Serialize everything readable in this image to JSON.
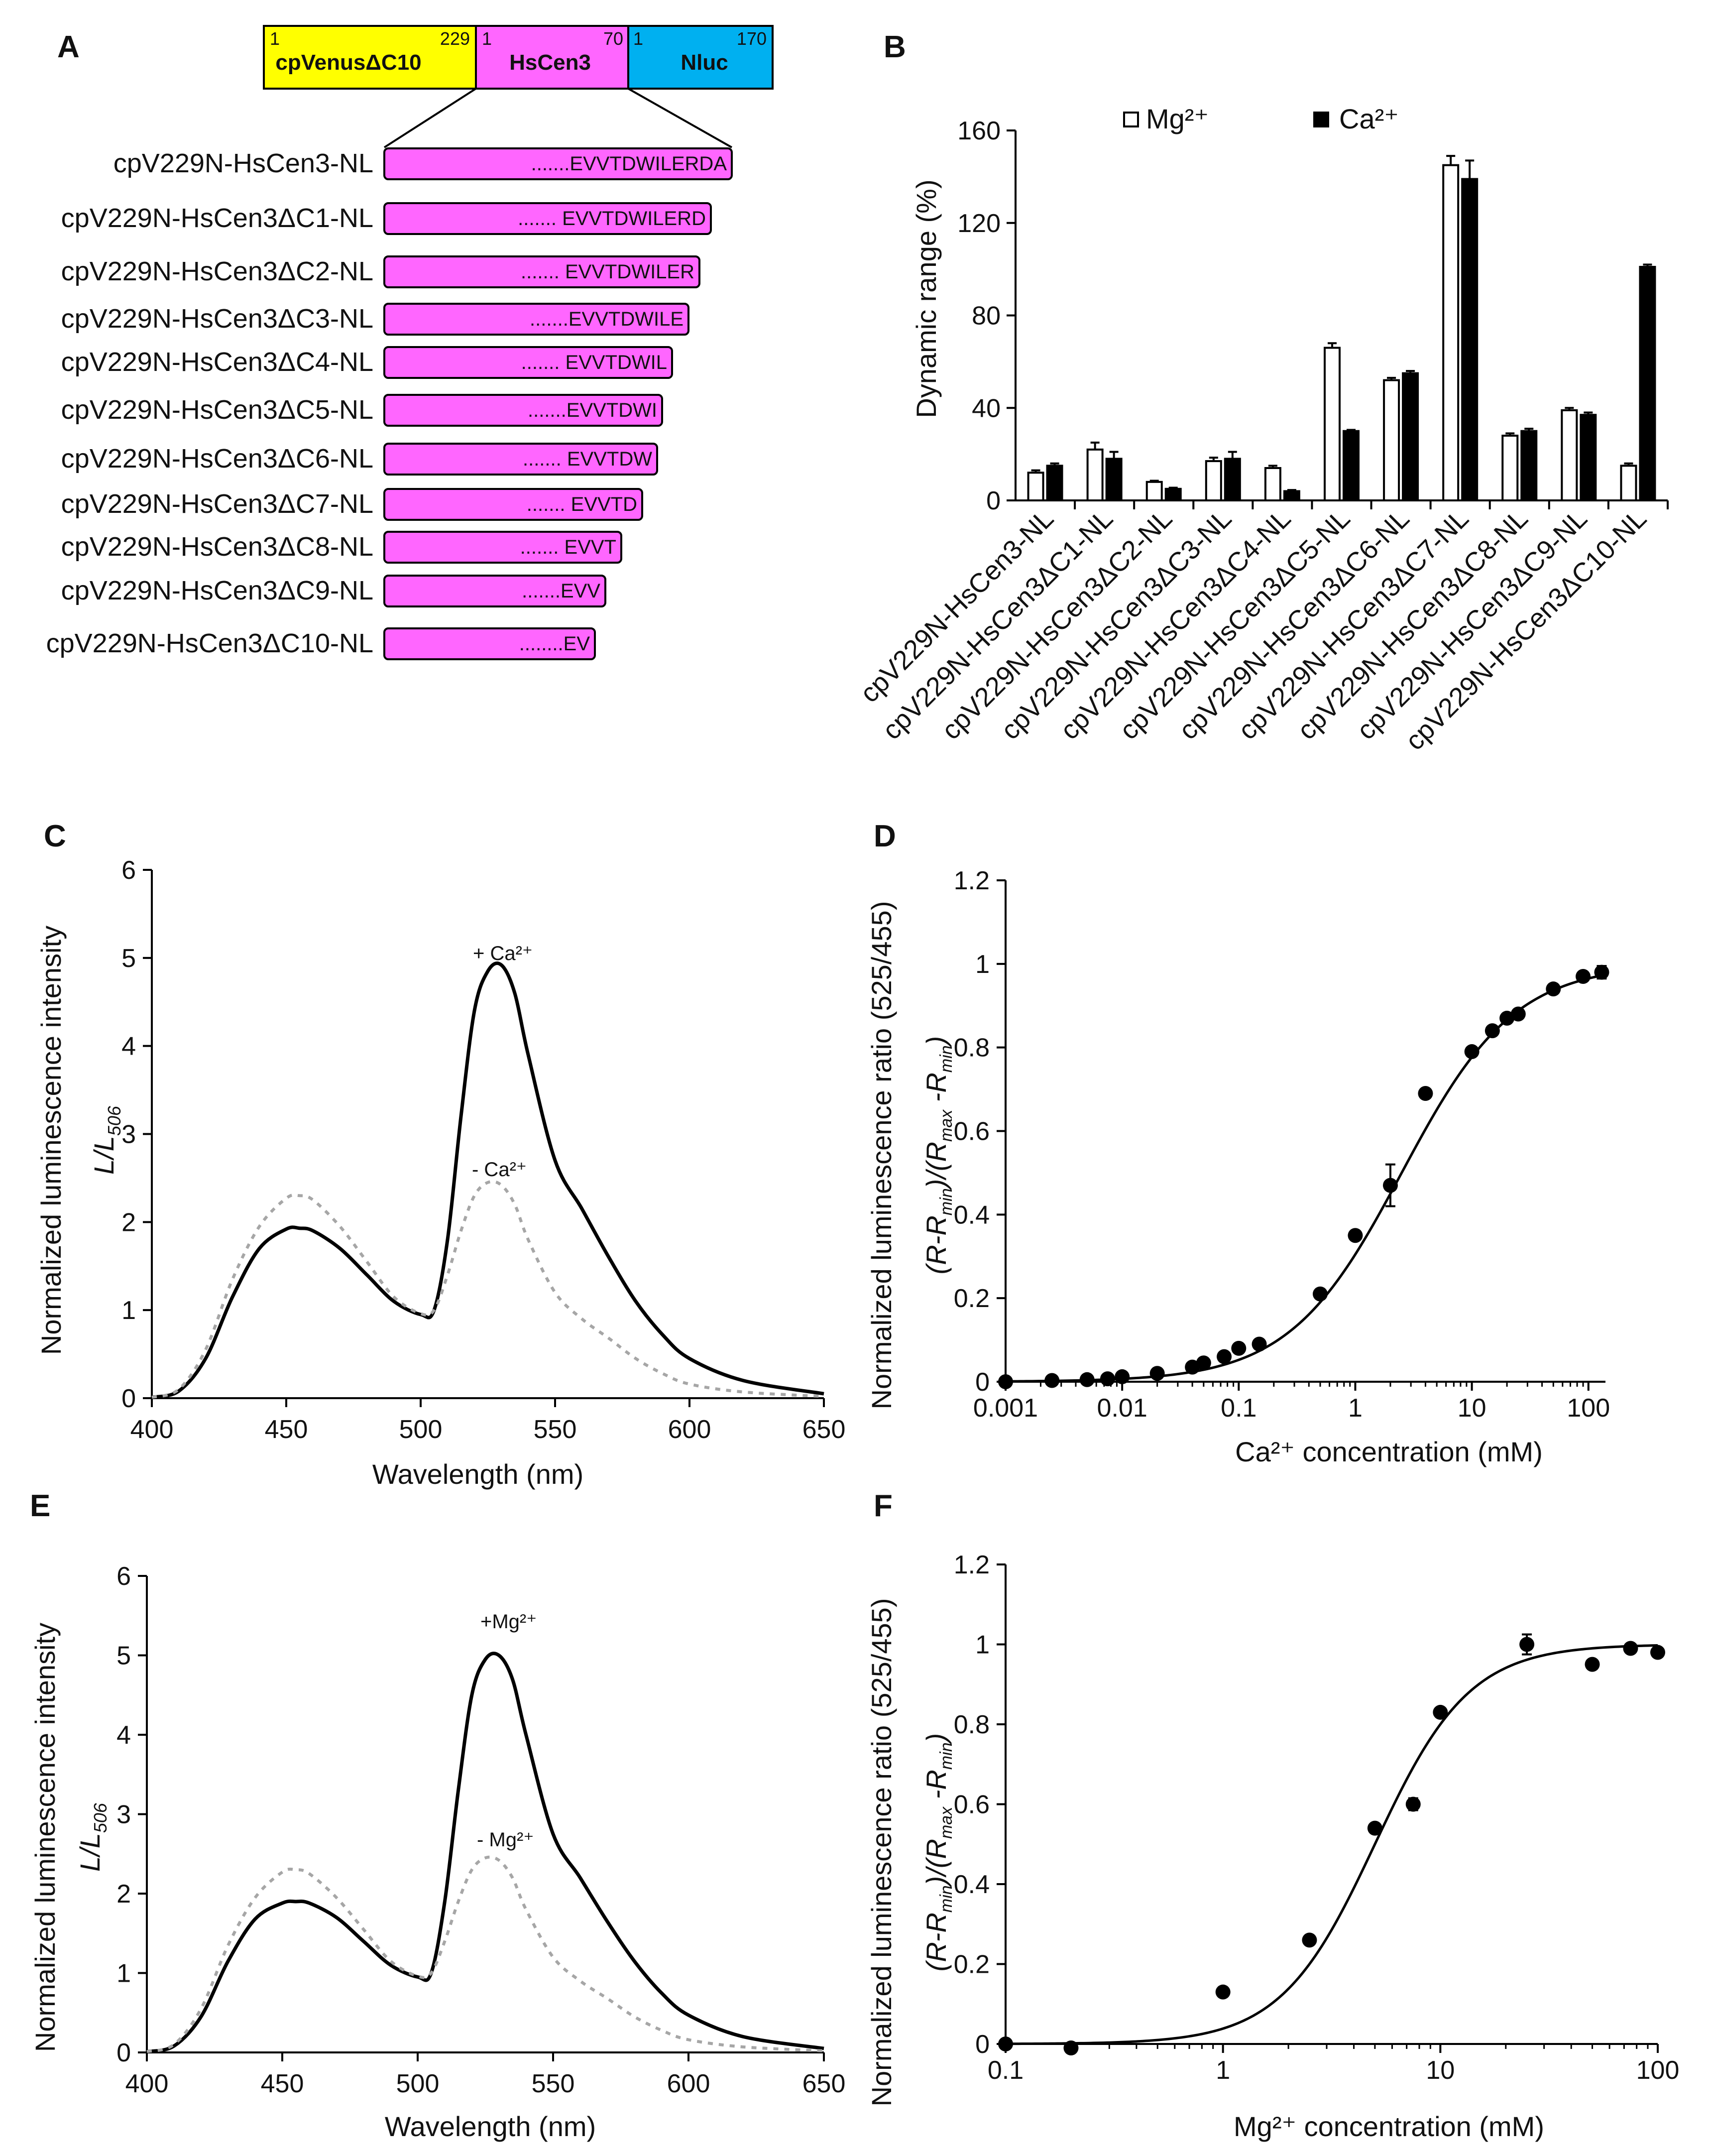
{
  "colors": {
    "yellow": "#ffff00",
    "magenta": "#ff66ff",
    "cyan": "#00b0f0",
    "black": "#000000",
    "gray": "#a6a6a6"
  },
  "panelA": {
    "label": "A",
    "domains": [
      {
        "name": "cpVenusΔC10",
        "start": "1",
        "end": "229"
      },
      {
        "name": "HsCen3",
        "start": "1",
        "end": "70"
      },
      {
        "name": "Nluc",
        "start": "1",
        "end": "170"
      }
    ],
    "constructs": [
      {
        "name": "cpV229N-HsCen3-NL",
        "seq": ".......EVVTDWILERDA"
      },
      {
        "name": "cpV229N-HsCen3ΔC1-NL",
        "seq": "....... EVVTDWILERD"
      },
      {
        "name": "cpV229N-HsCen3ΔC2-NL",
        "seq": "....... EVVTDWILER"
      },
      {
        "name": "cpV229N-HsCen3ΔC3-NL",
        "seq": ".......EVVTDWILE"
      },
      {
        "name": "cpV229N-HsCen3ΔC4-NL",
        "seq": "....... EVVTDWIL"
      },
      {
        "name": "cpV229N-HsCen3ΔC5-NL",
        "seq": ".......EVVTDWI"
      },
      {
        "name": "cpV229N-HsCen3ΔC6-NL",
        "seq": "....... EVVTDW"
      },
      {
        "name": "cpV229N-HsCen3ΔC7-NL",
        "seq": "....... EVVTD"
      },
      {
        "name": "cpV229N-HsCen3ΔC8-NL",
        "seq": "....... EVVT"
      },
      {
        "name": "cpV229N-HsCen3ΔC9-NL",
        "seq": ".......EVV"
      },
      {
        "name": "cpV229N-HsCen3ΔC10-NL",
        "seq": "........EV"
      }
    ]
  },
  "chart_data": [
    {
      "panel": "B",
      "type": "bar",
      "ylabel": "Dynamic range (%)",
      "ylim": [
        0,
        160
      ],
      "yticks": [
        "0",
        "40",
        "80",
        "120",
        "160"
      ],
      "legend": [
        "Mg²⁺",
        "Ca²⁺"
      ],
      "legend_position": "top",
      "categories": [
        "cpV229N-HsCen3-NL",
        "cpV229N-HsCen3ΔC1-NL",
        "cpV229N-HsCen3ΔC2-NL",
        "cpV229N-HsCen3ΔC3-NL",
        "cpV229N-HsCen3ΔC4-NL",
        "cpV229N-HsCen3ΔC5-NL",
        "cpV229N-HsCen3ΔC6-NL",
        "cpV229N-HsCen3ΔC7-NL",
        "cpV229N-HsCen3ΔC8-NL",
        "cpV229N-HsCen3ΔC9-NL",
        "cpV229N-HsCen3ΔC10-NL"
      ],
      "series": [
        {
          "name": "Mg²⁺",
          "values": [
            12,
            22,
            8,
            17,
            14,
            66,
            52,
            145,
            28,
            39,
            15
          ],
          "errors": [
            1,
            3,
            0.5,
            1.5,
            1,
            2,
            1,
            4,
            1,
            1,
            1
          ]
        },
        {
          "name": "Ca²⁺",
          "values": [
            15,
            18,
            5,
            18,
            4,
            30,
            55,
            139,
            30,
            37,
            101
          ],
          "errors": [
            1,
            3,
            0.5,
            3,
            0.5,
            0.5,
            1,
            8,
            1,
            1,
            1
          ]
        }
      ]
    },
    {
      "panel": "C",
      "type": "line",
      "xlabel": "Wavelength  (nm)",
      "ylabel": "Normalized luminescence  intensity",
      "ylabel2": "L/L",
      "ylabel2_sub": "506",
      "xlim": [
        400,
        650
      ],
      "ylim": [
        0,
        6
      ],
      "xticks": [
        "400",
        "450",
        "500",
        "550",
        "600",
        "650"
      ],
      "yticks": [
        "0",
        "1",
        "2",
        "3",
        "4",
        "5",
        "6"
      ],
      "annotations": [
        {
          "text": "+ Ca²⁺"
        },
        {
          "text": "- Ca²⁺"
        }
      ],
      "series": [
        {
          "name": "+ Ca²⁺",
          "style": "solid",
          "x": [
            400,
            410,
            420,
            430,
            440,
            450,
            455,
            460,
            470,
            480,
            490,
            500,
            505,
            510,
            515,
            520,
            525,
            530,
            535,
            540,
            550,
            560,
            570,
            580,
            590,
            600,
            620,
            650
          ],
          "y": [
            0.01,
            0.08,
            0.45,
            1.15,
            1.7,
            1.92,
            1.93,
            1.9,
            1.7,
            1.4,
            1.1,
            0.95,
            1.0,
            1.8,
            3.2,
            4.4,
            4.85,
            4.92,
            4.6,
            3.9,
            2.7,
            2.15,
            1.6,
            1.1,
            0.72,
            0.45,
            0.2,
            0.05
          ]
        },
        {
          "name": "- Ca²⁺",
          "style": "dotted",
          "x": [
            400,
            410,
            420,
            430,
            440,
            450,
            455,
            460,
            470,
            480,
            490,
            500,
            505,
            510,
            515,
            520,
            525,
            530,
            535,
            540,
            550,
            560,
            570,
            580,
            590,
            600,
            620,
            650
          ],
          "y": [
            0.01,
            0.1,
            0.55,
            1.35,
            1.95,
            2.27,
            2.3,
            2.25,
            1.95,
            1.55,
            1.15,
            0.96,
            1.0,
            1.4,
            1.9,
            2.3,
            2.45,
            2.42,
            2.2,
            1.8,
            1.2,
            0.9,
            0.68,
            0.45,
            0.28,
            0.16,
            0.07,
            0.02
          ]
        }
      ]
    },
    {
      "panel": "D",
      "type": "scatter",
      "xlabel": "Ca²⁺ concentration (mM)",
      "ylabel": "Normalized luminescence  ratio (525/455)",
      "ylabel2": "(R-R)/(R-R)",
      "xscale": "log",
      "xlim": [
        0.001,
        140
      ],
      "ylim": [
        0,
        1.2
      ],
      "xticks": [
        "0.001",
        "0.01",
        "0.1",
        "1",
        "10",
        "100"
      ],
      "yticks": [
        "0",
        "0.2",
        "0.4",
        "0.6",
        "0.8",
        "1",
        "1.2"
      ],
      "points": {
        "x": [
          0.001,
          0.0025,
          0.005,
          0.0075,
          0.01,
          0.02,
          0.04,
          0.05,
          0.075,
          0.1,
          0.15,
          0.5,
          1,
          2,
          4,
          10,
          15,
          20,
          25,
          50,
          90,
          130
        ],
        "y": [
          0,
          0.003,
          0.005,
          0.007,
          0.012,
          0.02,
          0.035,
          0.045,
          0.06,
          0.08,
          0.09,
          0.21,
          0.35,
          0.47,
          0.69,
          0.79,
          0.84,
          0.87,
          0.88,
          0.94,
          0.97,
          0.98
        ],
        "errors": [
          0,
          0,
          0,
          0,
          0,
          0,
          0,
          0,
          0,
          0,
          0,
          0,
          0,
          0.05,
          0,
          0,
          0,
          0,
          0,
          0,
          0,
          0.015
        ]
      },
      "fit": {
        "model": "hill",
        "kd_mM": 2.5,
        "n": 0.9
      }
    },
    {
      "panel": "E",
      "type": "line",
      "xlabel": "Wavelength  (nm)",
      "ylabel": "Normalized luminescence  intensity",
      "ylabel2": "L/L",
      "ylabel2_sub": "506",
      "xlim": [
        400,
        650
      ],
      "ylim": [
        0,
        6
      ],
      "xticks": [
        "400",
        "450",
        "500",
        "550",
        "600",
        "650"
      ],
      "yticks": [
        "0",
        "1",
        "2",
        "3",
        "4",
        "5",
        "6"
      ],
      "annotations": [
        {
          "text": "+Mg²⁺"
        },
        {
          "text": "- Mg²⁺"
        }
      ],
      "series": [
        {
          "name": "+Mg²⁺",
          "style": "solid",
          "x": [
            400,
            410,
            420,
            430,
            440,
            450,
            455,
            460,
            470,
            480,
            490,
            500,
            505,
            510,
            515,
            520,
            525,
            530,
            535,
            540,
            550,
            560,
            570,
            580,
            590,
            600,
            620,
            650
          ],
          "y": [
            0.01,
            0.08,
            0.45,
            1.15,
            1.68,
            1.88,
            1.9,
            1.88,
            1.7,
            1.4,
            1.1,
            0.95,
            1.0,
            1.9,
            3.3,
            4.5,
            4.95,
            5.0,
            4.7,
            4.0,
            2.75,
            2.2,
            1.65,
            1.15,
            0.75,
            0.47,
            0.2,
            0.05
          ]
        },
        {
          "name": "- Mg²⁺",
          "style": "dotted",
          "x": [
            400,
            410,
            420,
            430,
            440,
            450,
            455,
            460,
            470,
            480,
            490,
            500,
            505,
            510,
            515,
            520,
            525,
            530,
            535,
            540,
            550,
            560,
            570,
            580,
            590,
            600,
            620,
            650
          ],
          "y": [
            0.01,
            0.1,
            0.55,
            1.35,
            1.95,
            2.27,
            2.3,
            2.25,
            1.95,
            1.55,
            1.15,
            0.96,
            1.0,
            1.4,
            1.9,
            2.3,
            2.45,
            2.42,
            2.2,
            1.8,
            1.2,
            0.9,
            0.68,
            0.45,
            0.28,
            0.16,
            0.07,
            0.02
          ]
        }
      ]
    },
    {
      "panel": "F",
      "type": "scatter",
      "xlabel": "Mg²⁺ concentration (mM)",
      "ylabel": "Normalized luminescence  ratio (525/455)",
      "ylabel2": "(R-R)/(R-R)",
      "xscale": "log",
      "xlim": [
        0.1,
        100
      ],
      "ylim": [
        0,
        1.2
      ],
      "xticks": [
        "0.1",
        "1",
        "10",
        "100"
      ],
      "yticks": [
        "0",
        "0.2",
        "0.4",
        "0.6",
        "0.8",
        "1",
        "1.2"
      ],
      "points": {
        "x": [
          0.1,
          0.2,
          1,
          2.5,
          5,
          7.5,
          10,
          25,
          50,
          75,
          100
        ],
        "y": [
          0,
          -0.01,
          0.13,
          0.26,
          0.54,
          0.6,
          0.83,
          1.0,
          0.95,
          0.99,
          0.98
        ],
        "errors": [
          0,
          0,
          0,
          0,
          0,
          0.015,
          0,
          0.025,
          0,
          0,
          0
        ]
      },
      "fit": {
        "model": "hill",
        "kd_mM": 5,
        "n": 2
      }
    }
  ]
}
